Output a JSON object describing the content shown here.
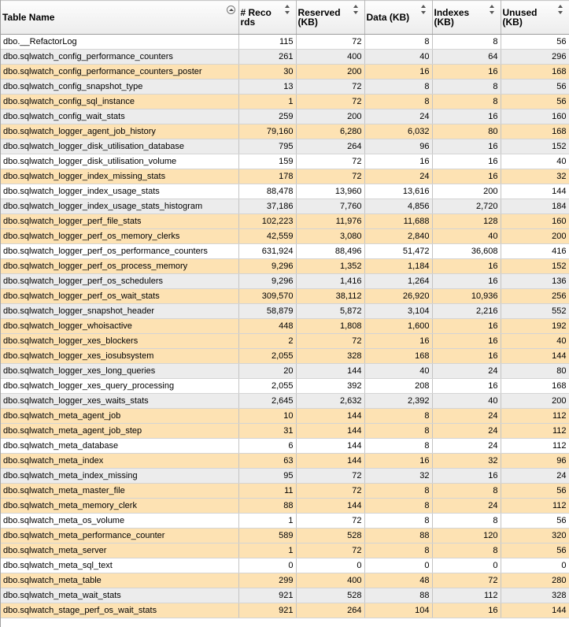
{
  "columns": [
    {
      "label": "Table Name"
    },
    {
      "label": "# Records"
    },
    {
      "label": "Reserved (KB)"
    },
    {
      "label": "Data (KB)"
    },
    {
      "label": "Indexes (KB)"
    },
    {
      "label": "Unused (KB)"
    }
  ],
  "rows": [
    {
      "name": "dbo.__RefactorLog",
      "records": "115",
      "reserved": "72",
      "data": "8",
      "indexes": "8",
      "unused": "56",
      "style": "even"
    },
    {
      "name": "dbo.sqlwatch_config_performance_counters",
      "records": "261",
      "reserved": "400",
      "data": "40",
      "indexes": "64",
      "unused": "296",
      "style": "odd"
    },
    {
      "name": "dbo.sqlwatch_config_performance_counters_poster",
      "records": "30",
      "reserved": "200",
      "data": "16",
      "indexes": "16",
      "unused": "168",
      "style": "hl"
    },
    {
      "name": "dbo.sqlwatch_config_snapshot_type",
      "records": "13",
      "reserved": "72",
      "data": "8",
      "indexes": "8",
      "unused": "56",
      "style": "odd"
    },
    {
      "name": "dbo.sqlwatch_config_sql_instance",
      "records": "1",
      "reserved": "72",
      "data": "8",
      "indexes": "8",
      "unused": "56",
      "style": "hl"
    },
    {
      "name": "dbo.sqlwatch_config_wait_stats",
      "records": "259",
      "reserved": "200",
      "data": "24",
      "indexes": "16",
      "unused": "160",
      "style": "odd"
    },
    {
      "name": "dbo.sqlwatch_logger_agent_job_history",
      "records": "79,160",
      "reserved": "6,280",
      "data": "6,032",
      "indexes": "80",
      "unused": "168",
      "style": "hl"
    },
    {
      "name": "dbo.sqlwatch_logger_disk_utilisation_database",
      "records": "795",
      "reserved": "264",
      "data": "96",
      "indexes": "16",
      "unused": "152",
      "style": "odd"
    },
    {
      "name": "dbo.sqlwatch_logger_disk_utilisation_volume",
      "records": "159",
      "reserved": "72",
      "data": "16",
      "indexes": "16",
      "unused": "40",
      "style": "even"
    },
    {
      "name": "dbo.sqlwatch_logger_index_missing_stats",
      "records": "178",
      "reserved": "72",
      "data": "24",
      "indexes": "16",
      "unused": "32",
      "style": "hl"
    },
    {
      "name": "dbo.sqlwatch_logger_index_usage_stats",
      "records": "88,478",
      "reserved": "13,960",
      "data": "13,616",
      "indexes": "200",
      "unused": "144",
      "style": "even"
    },
    {
      "name": "dbo.sqlwatch_logger_index_usage_stats_histogram",
      "records": "37,186",
      "reserved": "7,760",
      "data": "4,856",
      "indexes": "2,720",
      "unused": "184",
      "style": "odd"
    },
    {
      "name": "dbo.sqlwatch_logger_perf_file_stats",
      "records": "102,223",
      "reserved": "11,976",
      "data": "11,688",
      "indexes": "128",
      "unused": "160",
      "style": "hl"
    },
    {
      "name": "dbo.sqlwatch_logger_perf_os_memory_clerks",
      "records": "42,559",
      "reserved": "3,080",
      "data": "2,840",
      "indexes": "40",
      "unused": "200",
      "style": "hl"
    },
    {
      "name": "dbo.sqlwatch_logger_perf_os_performance_counters",
      "records": "631,924",
      "reserved": "88,496",
      "data": "51,472",
      "indexes": "36,608",
      "unused": "416",
      "style": "even"
    },
    {
      "name": "dbo.sqlwatch_logger_perf_os_process_memory",
      "records": "9,296",
      "reserved": "1,352",
      "data": "1,184",
      "indexes": "16",
      "unused": "152",
      "style": "hl"
    },
    {
      "name": "dbo.sqlwatch_logger_perf_os_schedulers",
      "records": "9,296",
      "reserved": "1,416",
      "data": "1,264",
      "indexes": "16",
      "unused": "136",
      "style": "odd"
    },
    {
      "name": "dbo.sqlwatch_logger_perf_os_wait_stats",
      "records": "309,570",
      "reserved": "38,112",
      "data": "26,920",
      "indexes": "10,936",
      "unused": "256",
      "style": "hl"
    },
    {
      "name": "dbo.sqlwatch_logger_snapshot_header",
      "records": "58,879",
      "reserved": "5,872",
      "data": "3,104",
      "indexes": "2,216",
      "unused": "552",
      "style": "odd"
    },
    {
      "name": "dbo.sqlwatch_logger_whoisactive",
      "records": "448",
      "reserved": "1,808",
      "data": "1,600",
      "indexes": "16",
      "unused": "192",
      "style": "hl"
    },
    {
      "name": "dbo.sqlwatch_logger_xes_blockers",
      "records": "2",
      "reserved": "72",
      "data": "16",
      "indexes": "16",
      "unused": "40",
      "style": "hl"
    },
    {
      "name": "dbo.sqlwatch_logger_xes_iosubsystem",
      "records": "2,055",
      "reserved": "328",
      "data": "168",
      "indexes": "16",
      "unused": "144",
      "style": "hl"
    },
    {
      "name": "dbo.sqlwatch_logger_xes_long_queries",
      "records": "20",
      "reserved": "144",
      "data": "40",
      "indexes": "24",
      "unused": "80",
      "style": "odd"
    },
    {
      "name": "dbo.sqlwatch_logger_xes_query_processing",
      "records": "2,055",
      "reserved": "392",
      "data": "208",
      "indexes": "16",
      "unused": "168",
      "style": "even"
    },
    {
      "name": "dbo.sqlwatch_logger_xes_waits_stats",
      "records": "2,645",
      "reserved": "2,632",
      "data": "2,392",
      "indexes": "40",
      "unused": "200",
      "style": "odd"
    },
    {
      "name": "dbo.sqlwatch_meta_agent_job",
      "records": "10",
      "reserved": "144",
      "data": "8",
      "indexes": "24",
      "unused": "112",
      "style": "hl"
    },
    {
      "name": "dbo.sqlwatch_meta_agent_job_step",
      "records": "31",
      "reserved": "144",
      "data": "8",
      "indexes": "24",
      "unused": "112",
      "style": "hl"
    },
    {
      "name": "dbo.sqlwatch_meta_database",
      "records": "6",
      "reserved": "144",
      "data": "8",
      "indexes": "24",
      "unused": "112",
      "style": "even"
    },
    {
      "name": "dbo.sqlwatch_meta_index",
      "records": "63",
      "reserved": "144",
      "data": "16",
      "indexes": "32",
      "unused": "96",
      "style": "hl"
    },
    {
      "name": "dbo.sqlwatch_meta_index_missing",
      "records": "95",
      "reserved": "72",
      "data": "32",
      "indexes": "16",
      "unused": "24",
      "style": "odd"
    },
    {
      "name": "dbo.sqlwatch_meta_master_file",
      "records": "11",
      "reserved": "72",
      "data": "8",
      "indexes": "8",
      "unused": "56",
      "style": "hl"
    },
    {
      "name": "dbo.sqlwatch_meta_memory_clerk",
      "records": "88",
      "reserved": "144",
      "data": "8",
      "indexes": "24",
      "unused": "112",
      "style": "hl"
    },
    {
      "name": "dbo.sqlwatch_meta_os_volume",
      "records": "1",
      "reserved": "72",
      "data": "8",
      "indexes": "8",
      "unused": "56",
      "style": "even"
    },
    {
      "name": "dbo.sqlwatch_meta_performance_counter",
      "records": "589",
      "reserved": "528",
      "data": "88",
      "indexes": "120",
      "unused": "320",
      "style": "hl"
    },
    {
      "name": "dbo.sqlwatch_meta_server",
      "records": "1",
      "reserved": "72",
      "data": "8",
      "indexes": "8",
      "unused": "56",
      "style": "hl"
    },
    {
      "name": "dbo.sqlwatch_meta_sql_text",
      "records": "0",
      "reserved": "0",
      "data": "0",
      "indexes": "0",
      "unused": "0",
      "style": "even"
    },
    {
      "name": "dbo.sqlwatch_meta_table",
      "records": "299",
      "reserved": "400",
      "data": "48",
      "indexes": "72",
      "unused": "280",
      "style": "hl"
    },
    {
      "name": "dbo.sqlwatch_meta_wait_stats",
      "records": "921",
      "reserved": "528",
      "data": "88",
      "indexes": "112",
      "unused": "328",
      "style": "odd"
    },
    {
      "name": "dbo.sqlwatch_stage_perf_os_wait_stats",
      "records": "921",
      "reserved": "264",
      "data": "104",
      "indexes": "16",
      "unused": "144",
      "style": "hl"
    }
  ],
  "colors": {
    "highlight_row": "#fde2b3",
    "alt_row": "#ececec",
    "grid_line": "#c4c4c4"
  },
  "icons": {
    "sort_active": "sort-ascending-circle-icon",
    "sort_inactive": "sort-updown-icon"
  }
}
